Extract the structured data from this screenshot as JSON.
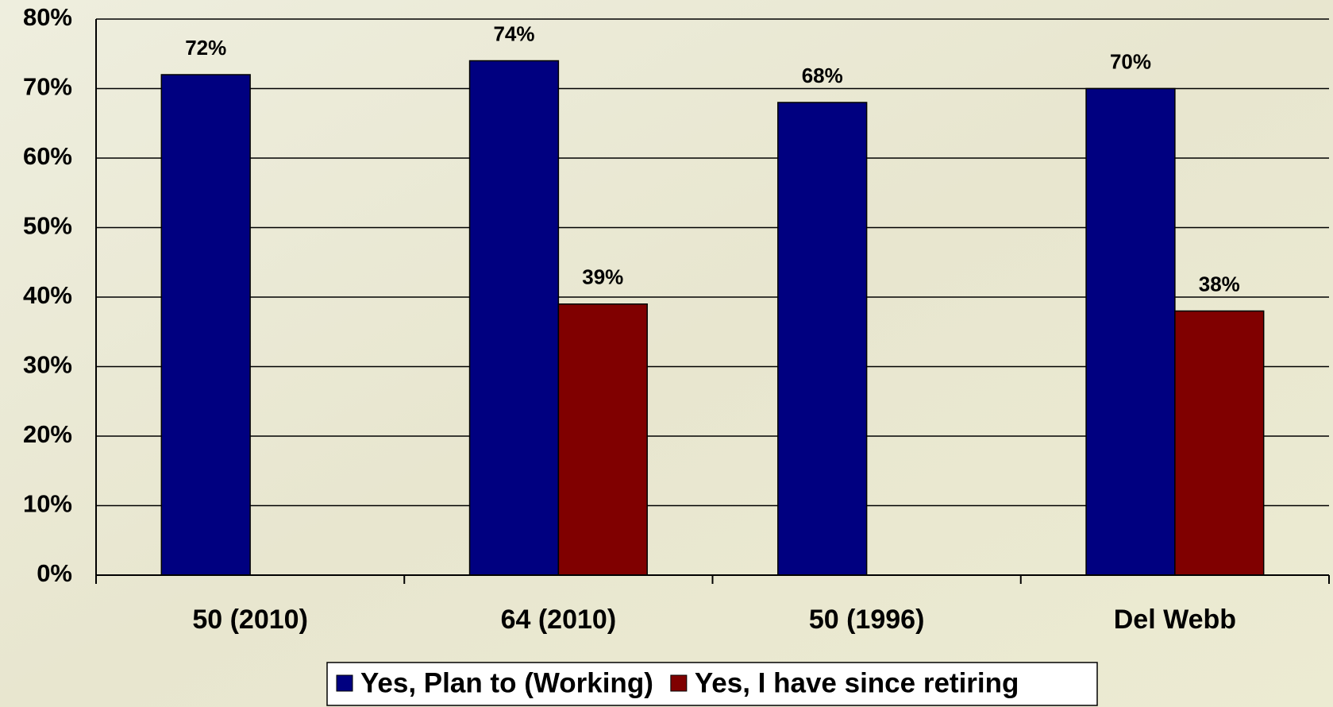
{
  "chart_data": {
    "type": "bar",
    "categories": [
      "50 (2010)",
      "64 (2010)",
      "50 (1996)",
      "Del Webb"
    ],
    "series": [
      {
        "name": "Yes, Plan to (Working)",
        "color": "#000080",
        "values": [
          72,
          74,
          68,
          70
        ],
        "value_labels": [
          "72%",
          "74%",
          "68%",
          "70%"
        ]
      },
      {
        "name": "Yes, I have since retiring",
        "color": "#800000",
        "values": [
          null,
          39,
          null,
          38
        ],
        "value_labels": [
          null,
          "39%",
          null,
          "38%"
        ]
      }
    ],
    "ylim": [
      0,
      80
    ],
    "yticks": [
      {
        "value": 0,
        "label": "0%"
      },
      {
        "value": 10,
        "label": "10%"
      },
      {
        "value": 20,
        "label": "20%"
      },
      {
        "value": 30,
        "label": "30%"
      },
      {
        "value": 40,
        "label": "40%"
      },
      {
        "value": 50,
        "label": "50%"
      },
      {
        "value": 60,
        "label": "60%"
      },
      {
        "value": 70,
        "label": "70%"
      },
      {
        "value": 80,
        "label": "80%"
      }
    ],
    "grid": true,
    "legend": "bottom"
  }
}
